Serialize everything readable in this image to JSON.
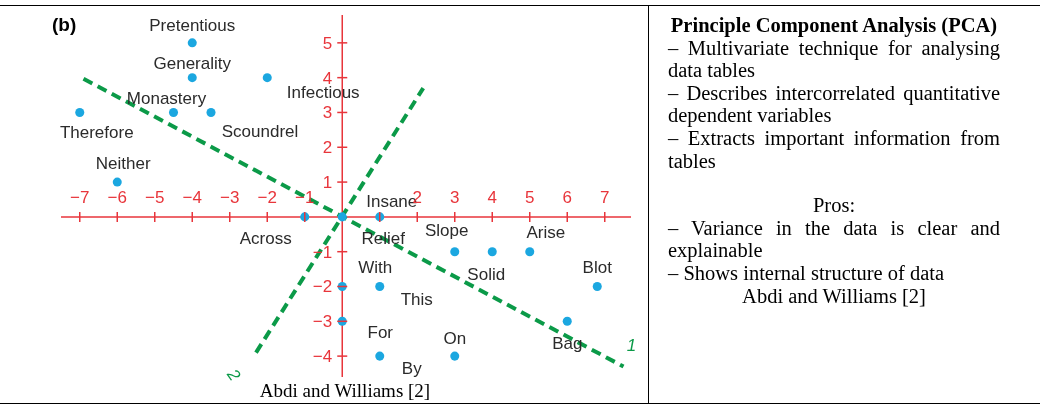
{
  "chart_data": [
    {
      "type": "scatter",
      "title": "(b)",
      "marker": "circle",
      "line_style": "dashed",
      "xlim": [
        -7.5,
        7.7
      ],
      "ylim": [
        -4.6,
        5.8
      ],
      "xticks": [
        -7,
        -6,
        -5,
        -4,
        -3,
        -2,
        -1,
        {
          "value": 1,
          "label": null
        },
        2,
        3,
        4,
        5,
        6,
        7
      ],
      "yticks": [
        -4,
        -3,
        -2,
        -1,
        1,
        2,
        3,
        4,
        5
      ],
      "series": [
        {
          "type": "scatter",
          "color": "#1ba7e0",
          "x": [
            -4,
            -4,
            -2,
            -4.5,
            -3.5,
            -7,
            -6,
            -1,
            0,
            1,
            3,
            4,
            5,
            6.8,
            6,
            0,
            1,
            0,
            1,
            3
          ],
          "values": [
            5,
            4,
            4,
            3,
            3,
            3,
            1,
            0,
            0,
            0,
            -1,
            -1,
            -1,
            -2,
            -3,
            -2,
            -2,
            -3,
            -4,
            -4
          ]
        },
        {
          "type": "line",
          "name": "1",
          "marker": "none",
          "color": "#0b9a48",
          "x": [
            -6.9,
            7.5
          ],
          "values": [
            3.97,
            -4.3
          ]
        },
        {
          "type": "line",
          "name": "2",
          "marker": "none",
          "color": "#0b9a48",
          "x": [
            -2.3,
            2.16
          ],
          "values": [
            -3.9,
            3.7
          ]
        }
      ],
      "annotations": [
        {
          "text": "Pretentious",
          "x": -4,
          "y": 5
        },
        {
          "text": "Generality",
          "x": -4,
          "y": 4
        },
        {
          "text": "Infectious",
          "x": -2,
          "y": 4
        },
        {
          "text": "Monastery",
          "x": -4.5,
          "y": 3
        },
        {
          "text": "Scoundrel",
          "x": -3.5,
          "y": 3
        },
        {
          "text": "Therefore",
          "x": -7,
          "y": 3
        },
        {
          "text": "Neither",
          "x": -6,
          "y": 1
        },
        {
          "text": "Across",
          "x": -1,
          "y": 0
        },
        {
          "text": "Relief",
          "x": 0,
          "y": 0
        },
        {
          "text": "Insane",
          "x": 1,
          "y": 0
        },
        {
          "text": "Slope",
          "x": 3,
          "y": -1
        },
        {
          "text": "Solid",
          "x": 4,
          "y": -1
        },
        {
          "text": "Arise",
          "x": 5,
          "y": -1
        },
        {
          "text": "Blot",
          "x": 6.8,
          "y": -2
        },
        {
          "text": "Bag",
          "x": 6,
          "y": -3
        },
        {
          "text": "With",
          "x": 0,
          "y": -2
        },
        {
          "text": "This",
          "x": 1,
          "y": -2
        },
        {
          "text": "For",
          "x": 0,
          "y": -3
        },
        {
          "text": "By",
          "x": 1,
          "y": -4
        },
        {
          "text": "On",
          "x": 3,
          "y": -4
        },
        "Abdi and Williams [2]"
      ]
    },
    {
      "type": "other",
      "title": "Principle Component Analysis (PCA)",
      "annotations": [
        "– Multivariate technique for analysing data tables",
        "– Describes intercorrelated quantitative dependent variables",
        "– Extracts important information from tables",
        "Pros:",
        "– Variance in the data is clear and explainable",
        "– Shows internal structure of data",
        "Abdi and Williams [2]"
      ]
    }
  ]
}
